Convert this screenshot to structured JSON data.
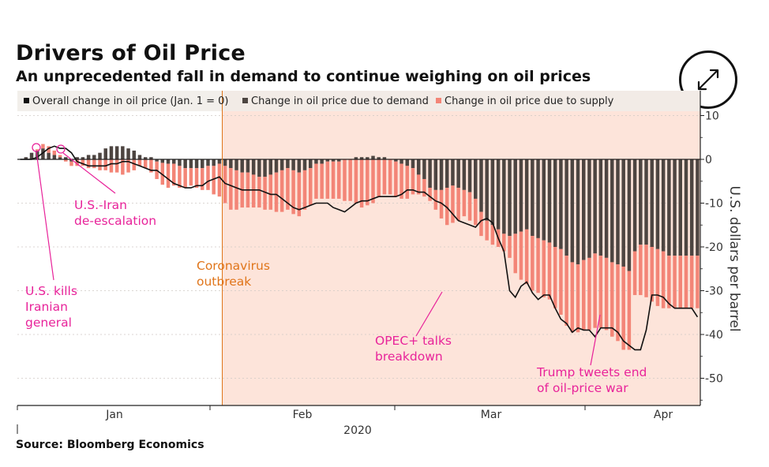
{
  "header": {
    "title": "Drivers of Oil Price",
    "subtitle": "An unprecedented fall in demand to continue weighing on oil prices"
  },
  "footer": {
    "source": "Source: Bloomberg Economics"
  },
  "controls": {
    "expand_icon": "expand-arrows-icon"
  },
  "colors": {
    "demand": "#4d4541",
    "supply": "#f38577",
    "overall": "#111111",
    "shade": "#fde4da",
    "annotation_pink": "#e8239a",
    "annotation_orange": "#e0751a"
  },
  "chart_data": {
    "type": "bar",
    "title": "Drivers of Oil Price",
    "ylabel": "U.S. dollars per barrel",
    "ylim": [
      -56,
      10
    ],
    "y_ticks": [
      "10",
      "0",
      "-10",
      "-20",
      "-30",
      "-40",
      "-50"
    ],
    "x_tick_labels": [
      "Jan",
      "Feb",
      "Mar",
      "Apr"
    ],
    "x_year_label": "2020",
    "legend": [
      {
        "label": "Overall change in oil price (Jan. 1 = 0)",
        "key": "overall"
      },
      {
        "label": "Change in oil price due to demand",
        "key": "demand"
      },
      {
        "label": "Change in oil price due to supply",
        "key": "supply"
      }
    ],
    "shaded_region": {
      "label": "Coronavirus outbreak",
      "start_index": 36
    },
    "series": [
      {
        "name": "Change in oil price due to demand",
        "values": [
          0.0,
          0.5,
          1.5,
          2.0,
          2.5,
          1.5,
          1.0,
          0.5,
          0.5,
          -0.5,
          0.5,
          0.5,
          1.0,
          1.0,
          1.5,
          2.5,
          3.0,
          3.0,
          3.0,
          2.5,
          2.0,
          1.0,
          0.5,
          0.5,
          -0.5,
          -0.8,
          -1.0,
          -1.0,
          -1.5,
          -2.0,
          -2.0,
          -2.0,
          -2.0,
          -1.5,
          -1.5,
          -1.0,
          -1.5,
          -2.0,
          -2.5,
          -3.0,
          -3.0,
          -3.5,
          -4.0,
          -4.0,
          -3.5,
          -3.0,
          -2.5,
          -2.0,
          -2.5,
          -3.0,
          -2.5,
          -2.0,
          -1.0,
          -1.0,
          -0.5,
          -0.5,
          -0.5,
          0.0,
          0.0,
          0.5,
          0.5,
          0.5,
          0.8,
          0.5,
          0.5,
          0.0,
          -0.5,
          -1.0,
          -1.5,
          -2.0,
          -3.5,
          -4.5,
          -6.5,
          -7.0,
          -7.0,
          -6.5,
          -6.0,
          -6.5,
          -7.0,
          -7.5,
          -9.0,
          -12.0,
          -14.0,
          -15.0,
          -16.0,
          -17.0,
          -17.5,
          -17.0,
          -16.5,
          -16.0,
          -17.5,
          -18.0,
          -18.5,
          -19.0,
          -20.0,
          -20.5,
          -22.0,
          -23.5,
          -24.0,
          -23.0,
          -22.5,
          -21.5,
          -22.0,
          -22.5,
          -23.5,
          -24.0,
          -24.5,
          -25.5,
          -21.0,
          -19.5,
          -19.5,
          -20.0,
          -20.5,
          -21.0,
          -22.0,
          -22.0,
          -22.0,
          -22.0,
          -22.0,
          -22.0
        ]
      },
      {
        "name": "Change in oil price due to supply",
        "values": [
          0.0,
          0.0,
          0.0,
          0.3,
          1.0,
          1.5,
          1.0,
          0.5,
          -0.5,
          -1.0,
          -1.5,
          -1.5,
          -2.0,
          -2.0,
          -2.5,
          -2.5,
          -3.0,
          -3.0,
          -3.5,
          -3.0,
          -2.5,
          -1.5,
          -2.0,
          -3.0,
          -4.0,
          -5.0,
          -5.5,
          -5.0,
          -5.0,
          -4.5,
          -4.0,
          -4.5,
          -5.0,
          -5.5,
          -6.5,
          -7.5,
          -8.5,
          -9.5,
          -9.0,
          -8.0,
          -8.0,
          -7.5,
          -7.0,
          -7.5,
          -8.0,
          -9.0,
          -9.5,
          -9.5,
          -10.0,
          -10.0,
          -9.0,
          -8.5,
          -8.0,
          -8.0,
          -8.5,
          -8.5,
          -8.5,
          -9.5,
          -9.5,
          -10.0,
          -11.0,
          -10.5,
          -10.0,
          -8.5,
          -8.0,
          -8.0,
          -8.0,
          -8.0,
          -7.5,
          -6.0,
          -4.5,
          -4.0,
          -3.0,
          -4.5,
          -6.5,
          -8.5,
          -8.5,
          -7.5,
          -6.0,
          -6.5,
          -6.0,
          -5.5,
          -4.5,
          -4.5,
          -4.0,
          -4.0,
          -5.0,
          -9.0,
          -11.0,
          -12.5,
          -12.5,
          -12.5,
          -13.0,
          -13.0,
          -14.0,
          -15.0,
          -16.0,
          -16.0,
          -15.5,
          -16.0,
          -16.5,
          -17.0,
          -16.5,
          -16.5,
          -17.0,
          -17.5,
          -19.0,
          -18.0,
          -10.0,
          -11.5,
          -12.0,
          -12.5,
          -13.0,
          -13.0,
          -12.0,
          -12.0,
          -12.0,
          -12.0,
          -12.0,
          -12.0
        ]
      },
      {
        "name": "Overall change in oil price (Jan. 1 = 0)",
        "values": [
          0.0,
          0.0,
          0.0,
          0.5,
          1.5,
          2.5,
          3.0,
          2.5,
          2.5,
          1.5,
          -0.5,
          -1.0,
          -1.5,
          -1.5,
          -1.5,
          -1.5,
          -1.0,
          -1.0,
          -0.5,
          -0.5,
          -1.0,
          -1.5,
          -2.0,
          -2.5,
          -2.5,
          -3.5,
          -4.5,
          -5.5,
          -6.0,
          -6.5,
          -6.5,
          -6.0,
          -6.0,
          -5.0,
          -4.5,
          -4.0,
          -5.5,
          -6.0,
          -6.5,
          -7.0,
          -7.0,
          -7.0,
          -7.0,
          -7.5,
          -8.0,
          -8.0,
          -9.0,
          -10.0,
          -11.0,
          -11.5,
          -11.0,
          -10.5,
          -10.0,
          -10.0,
          -10.0,
          -11.0,
          -11.5,
          -12.0,
          -11.0,
          -10.0,
          -9.5,
          -9.5,
          -9.0,
          -8.5,
          -8.5,
          -8.5,
          -8.5,
          -8.0,
          -7.0,
          -7.0,
          -7.5,
          -7.5,
          -8.5,
          -9.5,
          -10.0,
          -11.0,
          -12.5,
          -14.0,
          -14.5,
          -15.0,
          -15.5,
          -14.0,
          -13.5,
          -14.5,
          -18.0,
          -21.0,
          -30.0,
          -31.5,
          -29.0,
          -28.0,
          -30.5,
          -32.0,
          -31.0,
          -31.0,
          -34.0,
          -36.5,
          -37.5,
          -39.5,
          -38.5,
          -39.0,
          -39.0,
          -40.5,
          -38.5,
          -38.5,
          -38.5,
          -39.5,
          -41.5,
          -42.5,
          -43.5,
          -43.5,
          -39.0,
          -31.0,
          -31.0,
          -31.5,
          -33.0,
          -34.0,
          -34.0,
          -34.0,
          -34.0,
          -36.0
        ]
      }
    ],
    "annotations": [
      {
        "text_lines": [
          "U.S.-Iran",
          "de-escalation"
        ],
        "color": "pink"
      },
      {
        "text_lines": [
          "U.S. kills",
          "Iranian",
          "general"
        ],
        "color": "pink"
      },
      {
        "text_lines": [
          "Coronavirus",
          "outbreak"
        ],
        "color": "orange"
      },
      {
        "text_lines": [
          "OPEC+ talks",
          "breakdown"
        ],
        "color": "pink"
      },
      {
        "text_lines": [
          "Trump tweets end",
          "of oil-price war"
        ],
        "color": "pink"
      }
    ]
  }
}
